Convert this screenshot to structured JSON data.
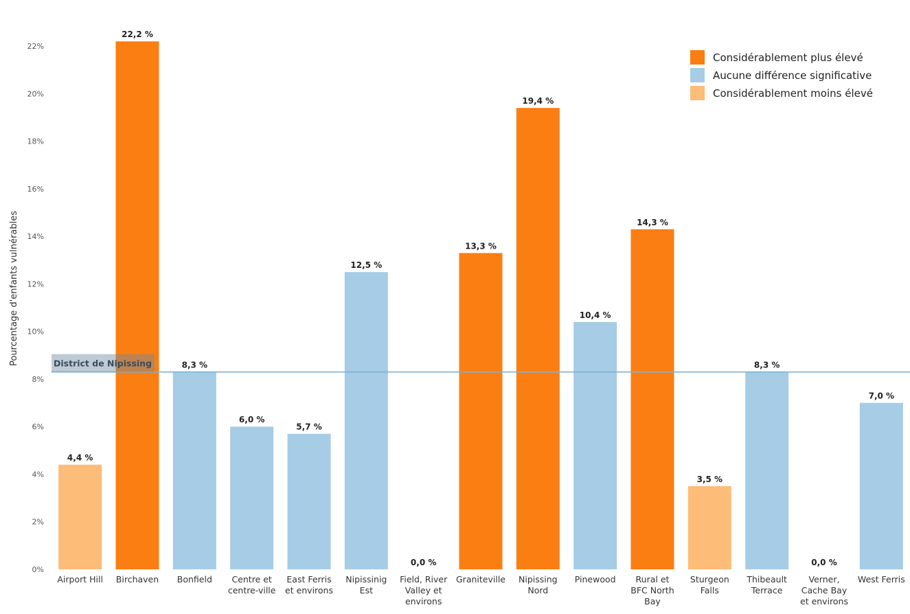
{
  "chart_data": {
    "type": "bar",
    "ylabel": "Pourcentage d'enfants vulnérables",
    "ylim": [
      0,
      24
    ],
    "yticks": [
      "0%",
      "2%",
      "4%",
      "6%",
      "8%",
      "10%",
      "12%",
      "14%",
      "16%",
      "18%",
      "20%",
      "22%"
    ],
    "categories": [
      [
        "Airport Hill"
      ],
      [
        "Birchaven"
      ],
      [
        "Bonfield"
      ],
      [
        "Centre et",
        "centre-ville"
      ],
      [
        "East Ferris",
        "et environs"
      ],
      [
        "Nipissinig",
        "Est"
      ],
      [
        "Field, River",
        "Valley et",
        "environs"
      ],
      [
        "Graniteville"
      ],
      [
        "Nipissing",
        "Nord"
      ],
      [
        "Pinewood"
      ],
      [
        "Rural et",
        "BFC North",
        "Bay"
      ],
      [
        "Sturgeon",
        "Falls"
      ],
      [
        "Thibeault",
        "Terrace"
      ],
      [
        "Verner,",
        "Cache Bay",
        "et environs"
      ],
      [
        "West Ferris"
      ]
    ],
    "values": [
      4.4,
      22.2,
      8.3,
      6.0,
      5.7,
      12.5,
      0.0,
      13.3,
      19.4,
      10.4,
      14.3,
      3.5,
      8.3,
      0.0,
      7.0
    ],
    "value_labels": [
      "4,4 %",
      "22,2 %",
      "8,3 %",
      "6,0 %",
      "5,7 %",
      "12,5 %",
      "0,0 %",
      "13,3 %",
      "19,4 %",
      "10,4 %",
      "14,3 %",
      "3,5 %",
      "8,3 %",
      "0,0 %",
      "7,0 %"
    ],
    "groups": [
      "lower",
      "higher",
      "nodiff",
      "nodiff",
      "nodiff",
      "nodiff",
      "nodiff",
      "higher",
      "higher",
      "nodiff",
      "higher",
      "lower",
      "nodiff",
      "nodiff",
      "nodiff"
    ],
    "reference_line": {
      "label": "District de Nipissing",
      "value": 8.3
    },
    "legend": {
      "position": "top-right",
      "items": [
        {
          "key": "higher",
          "label": "Considérablement plus élevé"
        },
        {
          "key": "nodiff",
          "label": "Aucune différence significative"
        },
        {
          "key": "lower",
          "label": "Considérablement moins élevé"
        }
      ]
    },
    "colors": {
      "higher": "#fb7e12",
      "nodiff": "#a6cce6",
      "lower": "#fdbc78",
      "reference": "#7fb2d5"
    },
    "grid": false
  }
}
